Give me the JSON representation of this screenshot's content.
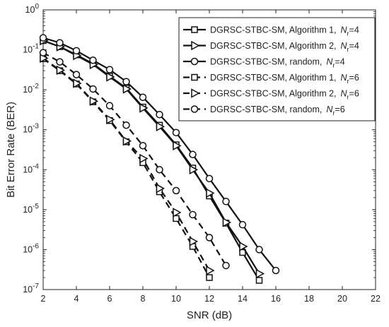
{
  "chart_data": {
    "type": "line",
    "xlabel": "SNR (dB)",
    "ylabel": "Bit Error Rate (BER)",
    "xlim": [
      2,
      22
    ],
    "ylim": [
      1e-07,
      1
    ],
    "yscale": "log",
    "xticks": [
      "2",
      "4",
      "6",
      "8",
      "10",
      "12",
      "14",
      "16",
      "18",
      "20",
      "22"
    ],
    "ytick_exponents": [
      "0",
      "-1",
      "-2",
      "-3",
      "-4",
      "-5",
      "-6",
      "-7"
    ],
    "ytick_base": "10",
    "legend_position": "top-right",
    "grid": false,
    "series": [
      {
        "name": "DGRSC-STBC-SM, Algorithm 1,",
        "nr_label": "N",
        "nr_sub": "r",
        "nr_value": "=4",
        "marker": "square",
        "dash": "solid",
        "x": [
          2,
          3,
          4,
          5,
          6,
          7,
          8,
          9,
          10,
          11,
          12,
          13,
          14,
          15
        ],
        "y": [
          0.17,
          0.12,
          0.075,
          0.045,
          0.022,
          0.011,
          0.0037,
          0.0013,
          0.00042,
          0.00011,
          2.2e-05,
          4.6e-06,
          8.5e-07,
          1.7e-07
        ]
      },
      {
        "name": "DGRSC-STBC-SM, Algorithm 2,",
        "nr_label": "N",
        "nr_sub": "r",
        "nr_value": "=4",
        "marker": "triangle-right",
        "dash": "solid",
        "x": [
          2,
          3,
          4,
          5,
          6,
          7,
          8,
          9,
          10,
          11,
          12,
          13,
          14,
          15
        ],
        "y": [
          0.17,
          0.12,
          0.072,
          0.043,
          0.021,
          0.0105,
          0.0035,
          0.0012,
          0.0004,
          0.0001,
          2.6e-05,
          4.8e-06,
          1.2e-06,
          2.5e-07
        ]
      },
      {
        "name": "DGRSC-STBC-SM, random,",
        "nr_label": "N",
        "nr_sub": "r",
        "nr_value": "=4",
        "marker": "circle",
        "dash": "solid",
        "x": [
          2,
          3,
          4,
          5,
          6,
          7,
          8,
          9,
          10,
          11,
          12,
          13,
          14,
          15,
          16
        ],
        "y": [
          0.2,
          0.15,
          0.095,
          0.055,
          0.032,
          0.016,
          0.0065,
          0.0024,
          0.00085,
          0.00024,
          6e-05,
          1.6e-05,
          4.2e-06,
          1e-06,
          3e-07
        ]
      },
      {
        "name": "DGRSC-STBC-SM, Algorithm 1,",
        "nr_label": "N",
        "nr_sub": "r",
        "nr_value": "=6",
        "marker": "square",
        "dash": "dashed",
        "x": [
          2,
          3,
          4,
          5,
          6,
          7,
          8,
          9,
          10,
          11,
          12
        ],
        "y": [
          0.06,
          0.03,
          0.014,
          0.005,
          0.0017,
          0.0005,
          0.00015,
          2.8e-05,
          6e-06,
          1.2e-06,
          2e-07
        ]
      },
      {
        "name": "DGRSC-STBC-SM, Algorithm 2,",
        "nr_label": "N",
        "nr_sub": "r",
        "nr_value": "=6",
        "marker": "triangle-right",
        "dash": "dashed",
        "x": [
          2,
          3,
          4,
          5,
          6,
          7,
          8,
          9,
          10,
          11,
          12
        ],
        "y": [
          0.062,
          0.031,
          0.0145,
          0.0052,
          0.0018,
          0.00052,
          0.00019,
          3.4e-05,
          8.5e-06,
          1.6e-06,
          3e-07
        ]
      },
      {
        "name": "DGRSC-STBC-SM, random,",
        "nr_label": "N",
        "nr_sub": "r",
        "nr_value": "=6",
        "marker": "circle",
        "dash": "dashed",
        "x": [
          2,
          3,
          4,
          5,
          6,
          7,
          8,
          9,
          10,
          11,
          12,
          13
        ],
        "y": [
          0.085,
          0.05,
          0.024,
          0.0105,
          0.004,
          0.0013,
          0.0004,
          0.0001,
          3e-05,
          7.5e-06,
          2e-06,
          4e-07
        ]
      }
    ]
  }
}
